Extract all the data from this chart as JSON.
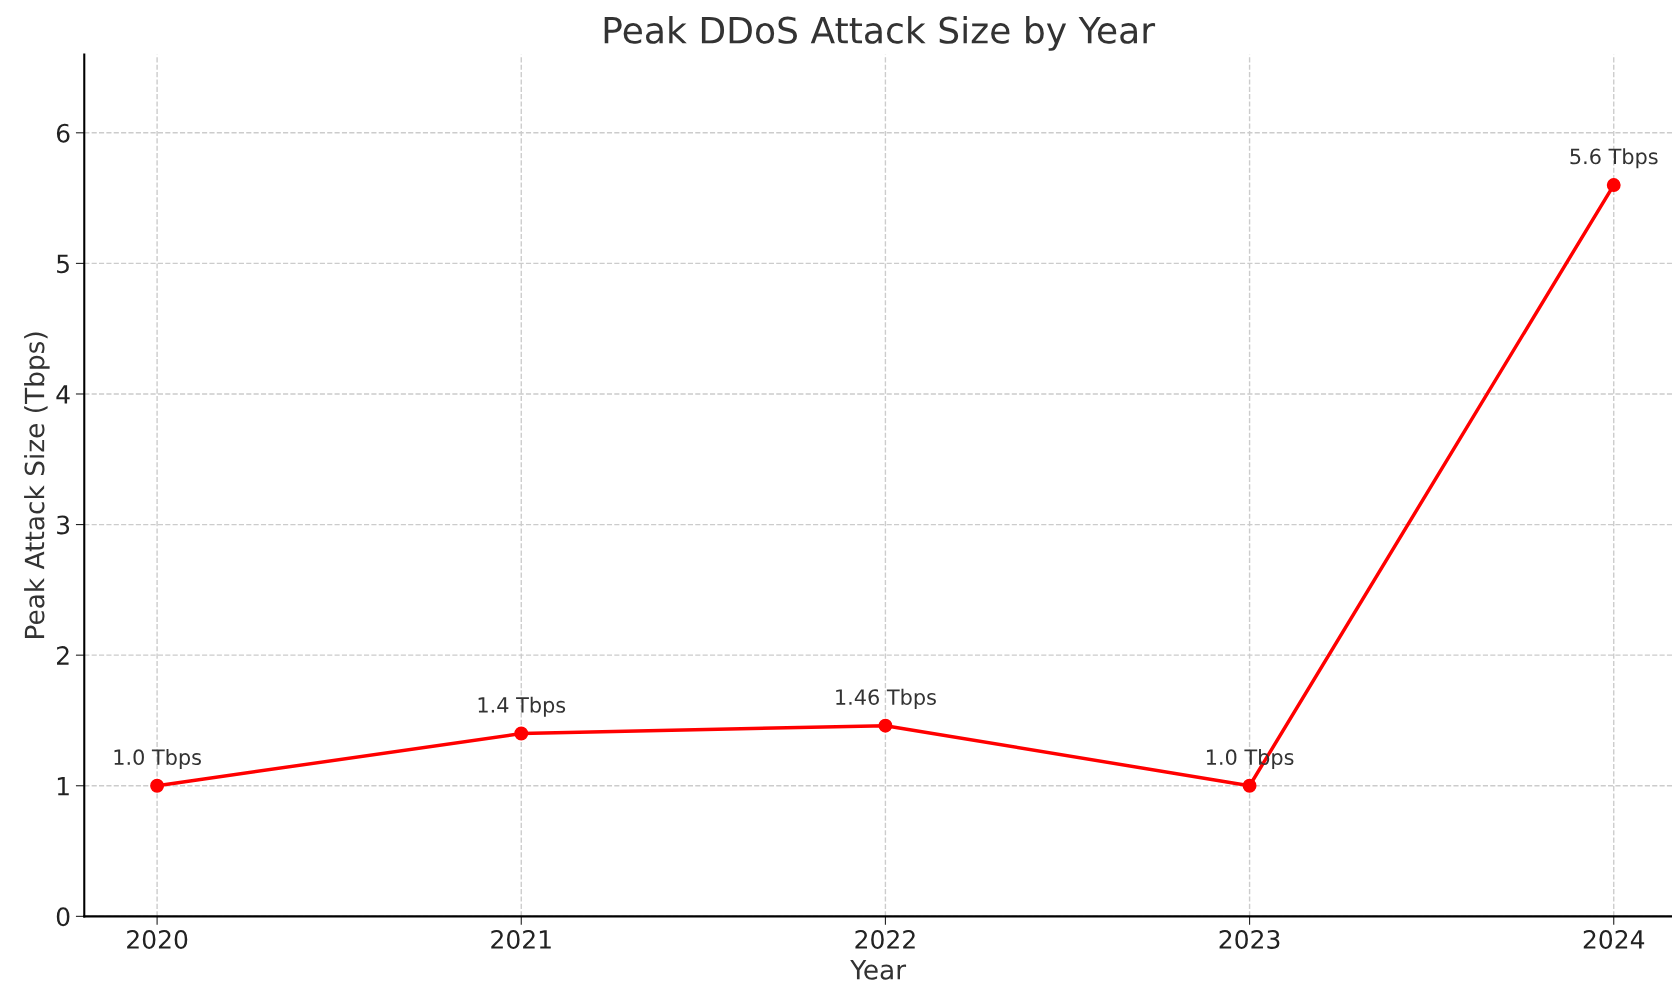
{
  "chart_data": {
    "type": "line",
    "title": "Peak DDoS Attack Size by Year",
    "xlabel": "Year",
    "ylabel": "Peak Attack Size (Tbps)",
    "x": [
      2020,
      2021,
      2022,
      2023,
      2024
    ],
    "series": [
      {
        "color": "#ff0000",
        "values": [
          1.0,
          1.4,
          1.46,
          1.0,
          5.6
        ],
        "value_labels": [
          "1.0 Tbps",
          "1.4 Tbps",
          "1.46 Tbps",
          "1.0 Tbps",
          "5.6 Tbps"
        ]
      }
    ],
    "xlim": [
      2019.8,
      2024.16
    ],
    "xticks": [
      2020,
      2021,
      2022,
      2023,
      2024
    ],
    "ylim": [
      0,
      6.6
    ],
    "yticks": [
      0,
      1,
      2,
      3,
      4,
      5,
      6
    ],
    "grid": true,
    "marker": "circle",
    "line_style": "solid"
  }
}
